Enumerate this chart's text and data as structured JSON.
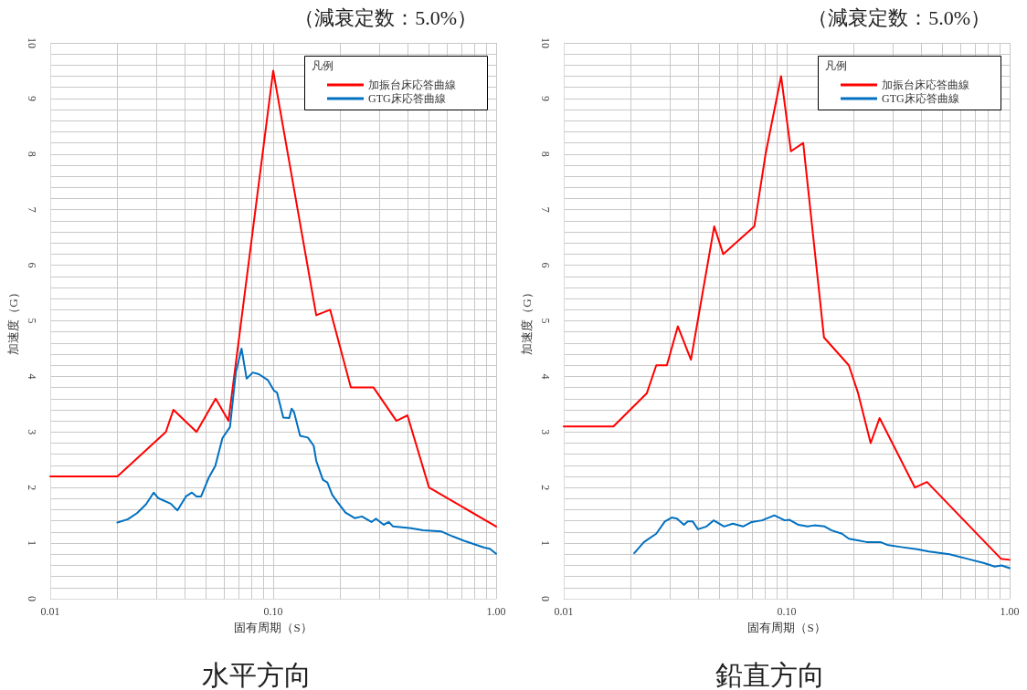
{
  "chart_data": [
    {
      "type": "line",
      "title": "水平方向",
      "subtitle": "（減衰定数：5.0%）",
      "xlabel": "固有周期（S）",
      "ylabel": "加速度（G）",
      "legend_title": "凡例",
      "legend": "top right",
      "log": "x",
      "grid": true,
      "marker": "none",
      "line_style": "solid",
      "xlim": [
        0.01,
        1
      ],
      "xticks": [
        {
          "value": 0.01,
          "label": "0.01"
        },
        {
          "value": 0.02,
          "label": null
        },
        {
          "value": 0.03,
          "label": null
        },
        {
          "value": 0.04,
          "label": null
        },
        {
          "value": 0.05,
          "label": null
        },
        {
          "value": 0.06,
          "label": null
        },
        {
          "value": 0.07,
          "label": null
        },
        {
          "value": 0.08,
          "label": null
        },
        {
          "value": 0.09,
          "label": null
        },
        {
          "value": 0.1,
          "label": "0.10"
        },
        {
          "value": 0.2,
          "label": null
        },
        {
          "value": 0.3,
          "label": null
        },
        {
          "value": 0.4,
          "label": null
        },
        {
          "value": 0.5,
          "label": null
        },
        {
          "value": 0.6,
          "label": null
        },
        {
          "value": 0.7,
          "label": null
        },
        {
          "value": 0.8,
          "label": null
        },
        {
          "value": 0.9,
          "label": null
        },
        {
          "value": 1,
          "label": "1.00"
        }
      ],
      "ylim": [
        0,
        10
      ],
      "yticks": [
        0,
        {
          "value": 0.2,
          "label": null
        },
        {
          "value": 0.4,
          "label": null
        },
        {
          "value": 0.6,
          "label": null
        },
        {
          "value": 0.8,
          "label": null
        },
        1,
        {
          "value": 1.2,
          "label": null
        },
        {
          "value": 1.4,
          "label": null
        },
        {
          "value": 1.6,
          "label": null
        },
        {
          "value": 1.8,
          "label": null
        },
        2,
        {
          "value": 2.2,
          "label": null
        },
        {
          "value": 2.4,
          "label": null
        },
        {
          "value": 2.6,
          "label": null
        },
        {
          "value": 2.8,
          "label": null
        },
        3,
        {
          "value": 3.2,
          "label": null
        },
        {
          "value": 3.4,
          "label": null
        },
        {
          "value": 3.6,
          "label": null
        },
        {
          "value": 3.8,
          "label": null
        },
        4,
        {
          "value": 4.2,
          "label": null
        },
        {
          "value": 4.4,
          "label": null
        },
        {
          "value": 4.6,
          "label": null
        },
        {
          "value": 4.8,
          "label": null
        },
        5,
        {
          "value": 5.2,
          "label": null
        },
        {
          "value": 5.4,
          "label": null
        },
        {
          "value": 5.6,
          "label": null
        },
        {
          "value": 5.8,
          "label": null
        },
        6,
        {
          "value": 6.2,
          "label": null
        },
        {
          "value": 6.4,
          "label": null
        },
        {
          "value": 6.6,
          "label": null
        },
        {
          "value": 6.8,
          "label": null
        },
        7,
        {
          "value": 7.2,
          "label": null
        },
        {
          "value": 7.4,
          "label": null
        },
        {
          "value": 7.6,
          "label": null
        },
        {
          "value": 7.8,
          "label": null
        },
        8,
        {
          "value": 8.2,
          "label": null
        },
        {
          "value": 8.4,
          "label": null
        },
        {
          "value": 8.6,
          "label": null
        },
        {
          "value": 8.8,
          "label": null
        },
        9,
        {
          "value": 9.2,
          "label": null
        },
        {
          "value": 9.4,
          "label": null
        },
        {
          "value": 9.6,
          "label": null
        },
        {
          "value": 9.8,
          "label": null
        },
        10
      ],
      "series": [
        {
          "name": "加振台床応答曲線",
          "color": "#ff0000",
          "x": [
            0.01,
            0.02,
            0.033,
            0.0357,
            0.0453,
            0.0552,
            0.063,
            0.1,
            0.156,
            0.18,
            0.223,
            0.282,
            0.357,
            0.4,
            0.5,
            1
          ],
          "values": [
            2.2,
            2.2,
            3.0,
            3.4,
            3.0,
            3.6,
            3.2,
            9.5,
            5.1,
            5.2,
            3.8,
            3.8,
            3.2,
            3.3,
            2.0,
            1.3
          ]
        },
        {
          "name": "GTG床応答曲線",
          "color": "#0070c0",
          "x": [
            0.02,
            0.0223,
            0.0245,
            0.0269,
            0.0291,
            0.0305,
            0.0347,
            0.0372,
            0.0406,
            0.0432,
            0.0453,
            0.0475,
            0.0513,
            0.055,
            0.0592,
            0.064,
            0.068,
            0.0721,
            0.076,
            0.081,
            0.0863,
            0.0948,
            0.101,
            0.104,
            0.111,
            0.118,
            0.121,
            0.124,
            0.132,
            0.143,
            0.152,
            0.156,
            0.167,
            0.175,
            0.184,
            0.195,
            0.211,
            0.232,
            0.25,
            0.276,
            0.289,
            0.313,
            0.33,
            0.345,
            0.416,
            0.47,
            0.569,
            0.64,
            0.733,
            0.885,
            0.937,
            1
          ],
          "values": [
            1.37,
            1.43,
            1.54,
            1.7,
            1.91,
            1.81,
            1.71,
            1.59,
            1.84,
            1.91,
            1.84,
            1.84,
            2.17,
            2.39,
            2.89,
            3.09,
            4.07,
            4.5,
            3.96,
            4.07,
            4.04,
            3.93,
            3.74,
            3.71,
            3.26,
            3.25,
            3.42,
            3.36,
            2.93,
            2.9,
            2.75,
            2.48,
            2.14,
            2.09,
            1.87,
            1.73,
            1.55,
            1.45,
            1.48,
            1.38,
            1.44,
            1.33,
            1.38,
            1.3,
            1.27,
            1.23,
            1.21,
            1.12,
            1.03,
            0.92,
            0.9,
            0.81
          ]
        }
      ]
    },
    {
      "type": "line",
      "title": "鉛直方向",
      "subtitle": "（減衰定数：5.0%）",
      "xlabel": "固有周期（S）",
      "ylabel": "加速度（G）",
      "legend_title": "凡例",
      "legend": "top right",
      "log": "x",
      "grid": true,
      "marker": "none",
      "line_style": "solid",
      "xlim": [
        0.01,
        1
      ],
      "xticks": [
        {
          "value": 0.01,
          "label": "0.01"
        },
        {
          "value": 0.02,
          "label": null
        },
        {
          "value": 0.03,
          "label": null
        },
        {
          "value": 0.04,
          "label": null
        },
        {
          "value": 0.05,
          "label": null
        },
        {
          "value": 0.06,
          "label": null
        },
        {
          "value": 0.07,
          "label": null
        },
        {
          "value": 0.08,
          "label": null
        },
        {
          "value": 0.09,
          "label": null
        },
        {
          "value": 0.1,
          "label": "0.10"
        },
        {
          "value": 0.2,
          "label": null
        },
        {
          "value": 0.3,
          "label": null
        },
        {
          "value": 0.4,
          "label": null
        },
        {
          "value": 0.5,
          "label": null
        },
        {
          "value": 0.6,
          "label": null
        },
        {
          "value": 0.7,
          "label": null
        },
        {
          "value": 0.8,
          "label": null
        },
        {
          "value": 0.9,
          "label": null
        },
        {
          "value": 1,
          "label": "1.00"
        }
      ],
      "ylim": [
        0,
        10
      ],
      "yticks": [
        0,
        {
          "value": 0.2,
          "label": null
        },
        {
          "value": 0.4,
          "label": null
        },
        {
          "value": 0.6,
          "label": null
        },
        {
          "value": 0.8,
          "label": null
        },
        1,
        {
          "value": 1.2,
          "label": null
        },
        {
          "value": 1.4,
          "label": null
        },
        {
          "value": 1.6,
          "label": null
        },
        {
          "value": 1.8,
          "label": null
        },
        2,
        {
          "value": 2.2,
          "label": null
        },
        {
          "value": 2.4,
          "label": null
        },
        {
          "value": 2.6,
          "label": null
        },
        {
          "value": 2.8,
          "label": null
        },
        3,
        {
          "value": 3.2,
          "label": null
        },
        {
          "value": 3.4,
          "label": null
        },
        {
          "value": 3.6,
          "label": null
        },
        {
          "value": 3.8,
          "label": null
        },
        4,
        {
          "value": 4.2,
          "label": null
        },
        {
          "value": 4.4,
          "label": null
        },
        {
          "value": 4.6,
          "label": null
        },
        {
          "value": 4.8,
          "label": null
        },
        5,
        {
          "value": 5.2,
          "label": null
        },
        {
          "value": 5.4,
          "label": null
        },
        {
          "value": 5.6,
          "label": null
        },
        {
          "value": 5.8,
          "label": null
        },
        6,
        {
          "value": 6.2,
          "label": null
        },
        {
          "value": 6.4,
          "label": null
        },
        {
          "value": 6.6,
          "label": null
        },
        {
          "value": 6.8,
          "label": null
        },
        7,
        {
          "value": 7.2,
          "label": null
        },
        {
          "value": 7.4,
          "label": null
        },
        {
          "value": 7.6,
          "label": null
        },
        {
          "value": 7.8,
          "label": null
        },
        8,
        {
          "value": 8.2,
          "label": null
        },
        {
          "value": 8.4,
          "label": null
        },
        {
          "value": 8.6,
          "label": null
        },
        {
          "value": 8.8,
          "label": null
        },
        9,
        {
          "value": 9.2,
          "label": null
        },
        {
          "value": 9.4,
          "label": null
        },
        {
          "value": 9.6,
          "label": null
        },
        {
          "value": 9.8,
          "label": null
        },
        10
      ],
      "series": [
        {
          "name": "加振台床応答曲線",
          "color": "#ff0000",
          "x": [
            0.01,
            0.0167,
            0.0236,
            0.026,
            0.029,
            0.0325,
            0.0372,
            0.0473,
            0.0519,
            0.0716,
            0.0804,
            0.0944,
            0.1045,
            0.1186,
            0.147,
            0.19,
            0.209,
            0.238,
            0.261,
            0.376,
            0.426,
            0.914,
            1
          ],
          "values": [
            3.1,
            3.1,
            3.7,
            4.2,
            4.2,
            4.9,
            4.3,
            6.7,
            6.2,
            6.7,
            8.0,
            9.4,
            8.05,
            8.2,
            4.7,
            4.2,
            3.7,
            2.8,
            3.25,
            2.0,
            2.1,
            0.72,
            0.7
          ]
        },
        {
          "name": "GTG床応答曲線",
          "color": "#0070c0",
          "x": [
            0.0207,
            0.0229,
            0.026,
            0.0284,
            0.0305,
            0.0322,
            0.0346,
            0.036,
            0.0379,
            0.04,
            0.0437,
            0.047,
            0.0524,
            0.0573,
            0.0637,
            0.0697,
            0.0776,
            0.088,
            0.098,
            0.103,
            0.113,
            0.124,
            0.133,
            0.148,
            0.159,
            0.177,
            0.19,
            0.208,
            0.228,
            0.263,
            0.282,
            0.326,
            0.384,
            0.434,
            0.537,
            0.643,
            0.769,
            0.857,
            0.92,
            1
          ],
          "values": [
            0.82,
            1.02,
            1.17,
            1.39,
            1.46,
            1.44,
            1.33,
            1.39,
            1.39,
            1.25,
            1.3,
            1.41,
            1.3,
            1.35,
            1.3,
            1.38,
            1.41,
            1.5,
            1.41,
            1.42,
            1.33,
            1.3,
            1.32,
            1.3,
            1.23,
            1.17,
            1.08,
            1.05,
            1.02,
            1.02,
            0.97,
            0.93,
            0.89,
            0.85,
            0.8,
            0.72,
            0.64,
            0.58,
            0.6,
            0.55
          ]
        }
      ]
    }
  ]
}
